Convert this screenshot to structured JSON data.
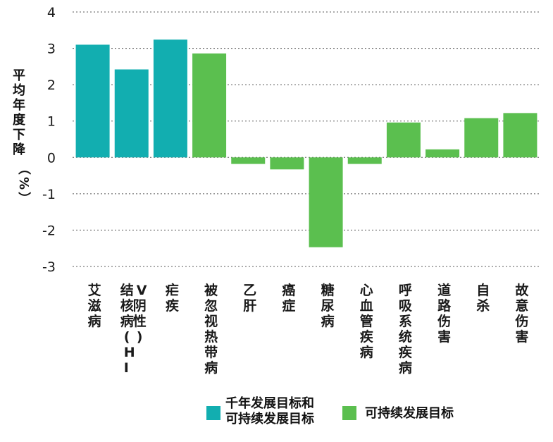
{
  "chart_data": {
    "type": "bar",
    "ylabel": "平均年度下降（%）",
    "ylim": [
      -3,
      4
    ],
    "yticks": [
      "4",
      "3",
      "2",
      "1",
      "0",
      "-1",
      "-2",
      "-3"
    ],
    "grid": true,
    "legend_position": "bottom",
    "categories": [
      "艾滋病",
      "结核病(HIV阴性)",
      "疟疾",
      "被忽视热带病",
      "乙肝",
      "癌症",
      "糖尿病",
      "心血管疾病",
      "呼吸系统疾病",
      "道路伤害",
      "自杀",
      "故意伤害"
    ],
    "values": [
      3.1,
      2.42,
      3.24,
      2.86,
      -0.18,
      -0.33,
      -2.47,
      -0.18,
      0.96,
      0.22,
      1.08,
      1.22
    ],
    "groups": [
      "mdg_sdg",
      "mdg_sdg",
      "mdg_sdg",
      "sdg",
      "sdg",
      "sdg",
      "sdg",
      "sdg",
      "sdg",
      "sdg",
      "sdg",
      "sdg"
    ],
    "series": [
      {
        "key": "mdg_sdg",
        "name": "千年发展目标和可持续发展目标",
        "name_lines": [
          "千年发展目标和",
          "可持续发展目标"
        ],
        "color": "#12aeb0"
      },
      {
        "key": "sdg",
        "name": "可持续发展目标",
        "name_lines": [
          "可持续发展目标"
        ],
        "color": "#5bbf4f"
      }
    ]
  }
}
